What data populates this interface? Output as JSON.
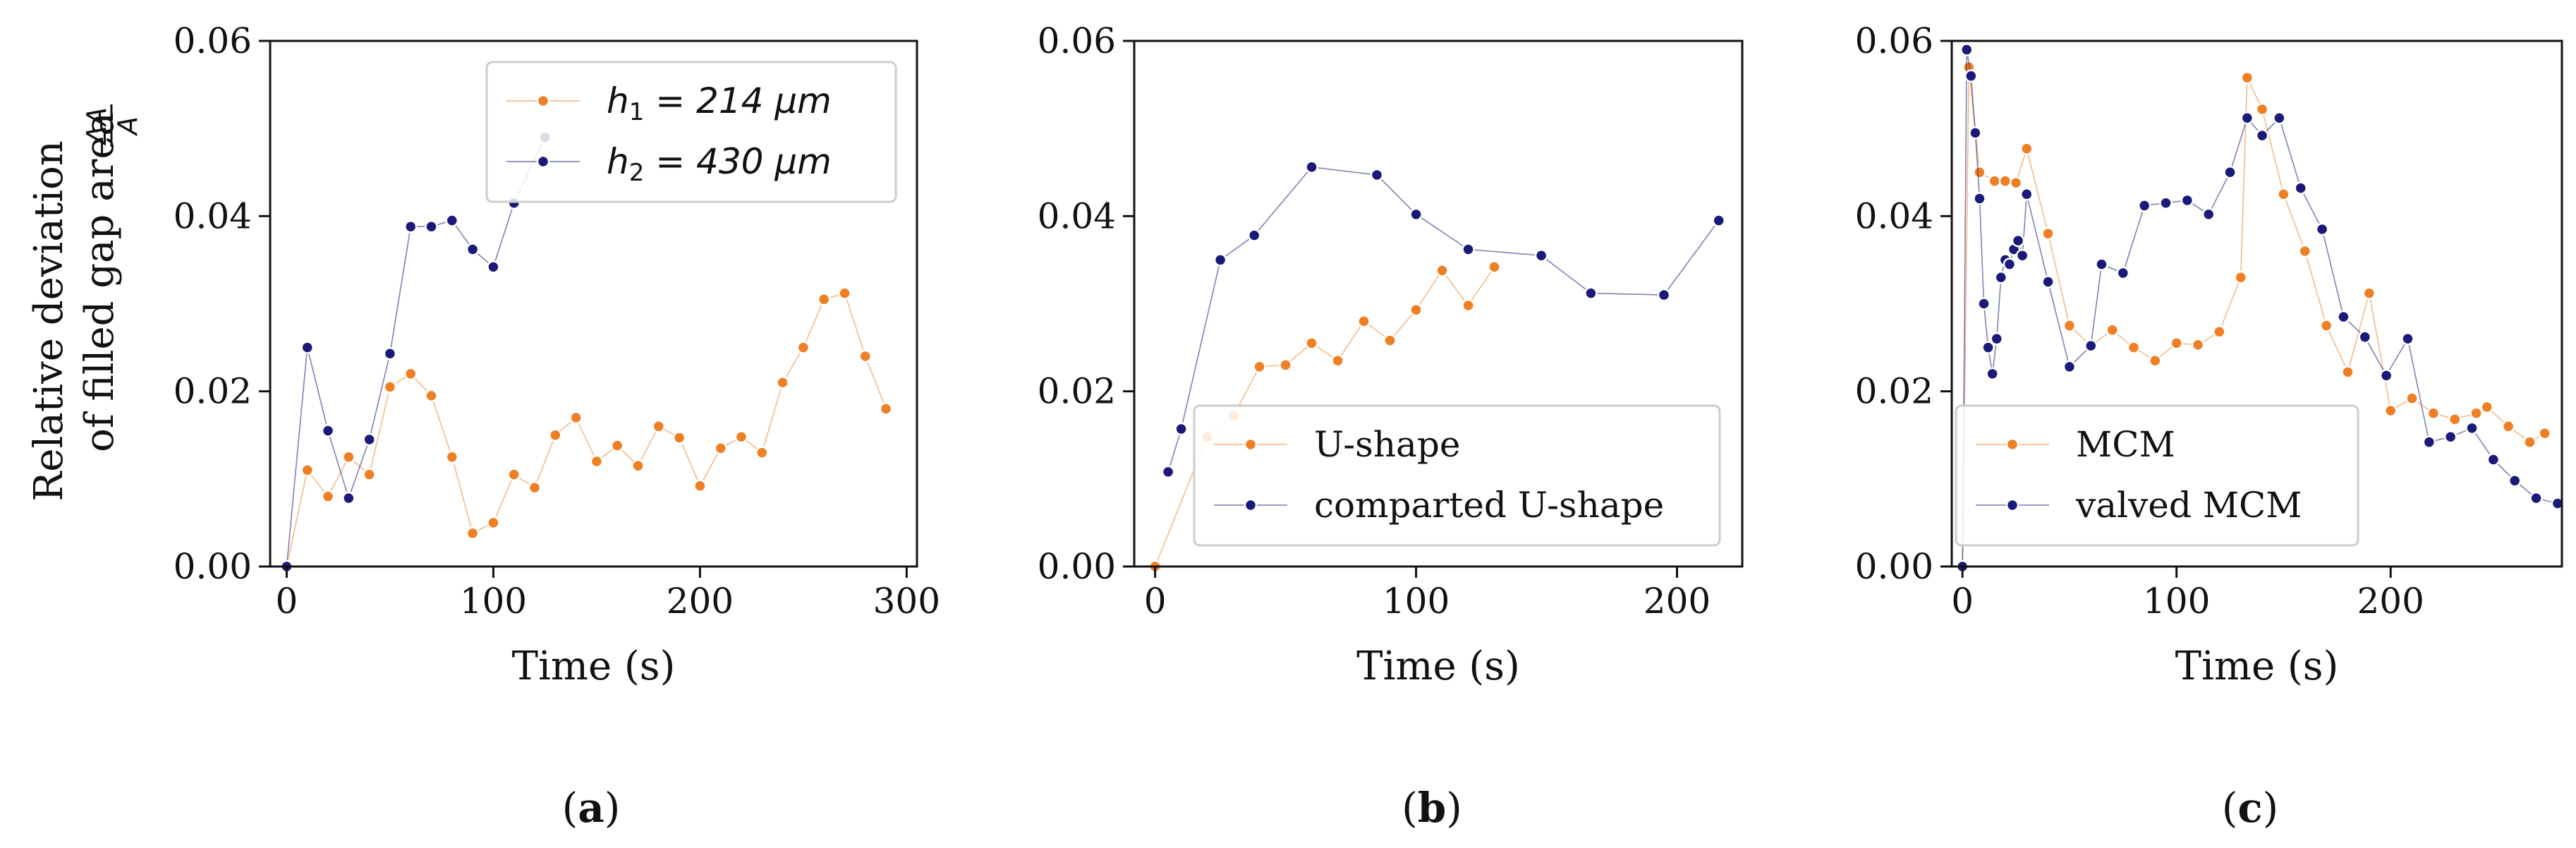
{
  "colors": {
    "orange": "#f07f23",
    "navy": "#1a1a7a",
    "axis": "#111111",
    "background": "#ffffff"
  },
  "figure": {
    "ylabel_line1": "Relative deviation",
    "ylabel_line2": "of filled gap area",
    "ylabel_fraction_num": "ΔA",
    "ylabel_fraction_den": "A"
  },
  "chart_data": [
    {
      "type": "line",
      "panel": "(a)",
      "panel_letter": "a",
      "xlabel": "Time (s)",
      "ylabel": "Relative deviation of filled gap area ΔA/A",
      "xlim": [
        -8,
        305
      ],
      "ylim": [
        0,
        0.06
      ],
      "xticks": [
        0,
        100,
        200,
        300
      ],
      "yticks": [
        0.0,
        0.02,
        0.04,
        0.06
      ],
      "ytick_labels": [
        "0.00",
        "0.02",
        "0.04",
        "0.06"
      ],
      "legend_position": "top-right",
      "series": [
        {
          "name": "h_1 = 214 μm",
          "legend_parts": [
            "h",
            "1",
            " = 214 μm"
          ],
          "color": "#f07f23",
          "x": [
            0,
            10,
            20,
            30,
            40,
            50,
            60,
            70,
            80,
            90,
            100,
            110,
            120,
            130,
            140,
            150,
            160,
            170,
            180,
            190,
            200,
            210,
            220,
            230,
            240,
            250,
            260,
            270,
            280,
            290
          ],
          "y": [
            0.0,
            0.011,
            0.008,
            0.0125,
            0.0105,
            0.0205,
            0.022,
            0.0195,
            0.0125,
            0.0038,
            0.005,
            0.0105,
            0.009,
            0.015,
            0.017,
            0.012,
            0.0138,
            0.0115,
            0.016,
            0.0147,
            0.0092,
            0.0135,
            0.0148,
            0.013,
            0.021,
            0.025,
            0.0305,
            0.0312,
            0.024,
            0.018
          ]
        },
        {
          "name": "h_2 = 430 μm",
          "legend_parts": [
            "h",
            "2",
            " = 430 μm"
          ],
          "color": "#1a1a7a",
          "x": [
            0,
            10,
            20,
            30,
            40,
            50,
            60,
            70,
            80,
            90,
            100,
            110,
            125
          ],
          "y": [
            0.0,
            0.025,
            0.0155,
            0.0078,
            0.0145,
            0.0243,
            0.0388,
            0.0388,
            0.0395,
            0.0362,
            0.0342,
            0.0415,
            0.049
          ]
        }
      ]
    },
    {
      "type": "line",
      "panel": "(b)",
      "panel_letter": "b",
      "xlabel": "Time (s)",
      "ylabel": "",
      "xlim": [
        -8,
        225
      ],
      "ylim": [
        0,
        0.06
      ],
      "xticks": [
        0,
        100,
        200
      ],
      "yticks": [
        0.0,
        0.02,
        0.04,
        0.06
      ],
      "ytick_labels": [
        "0.00",
        "0.02",
        "0.04",
        "0.06"
      ],
      "legend_position": "lower-right",
      "series": [
        {
          "name": "U-shape",
          "color": "#f07f23",
          "x": [
            0,
            20,
            30,
            40,
            50,
            60,
            70,
            80,
            90,
            100,
            110,
            120,
            130
          ],
          "y": [
            0.0,
            0.0148,
            0.0172,
            0.0228,
            0.023,
            0.0255,
            0.0235,
            0.028,
            0.0258,
            0.0293,
            0.0338,
            0.0298,
            0.0342
          ]
        },
        {
          "name": "comparted U-shape",
          "color": "#1a1a7a",
          "x": [
            5,
            10,
            25,
            38,
            60,
            85,
            100,
            120,
            148,
            167,
            195,
            216
          ],
          "y": [
            0.0108,
            0.0157,
            0.035,
            0.0378,
            0.0456,
            0.0447,
            0.0402,
            0.0362,
            0.0355,
            0.0312,
            0.031,
            0.0395
          ]
        }
      ]
    },
    {
      "type": "line",
      "panel": "(c)",
      "panel_letter": "c",
      "xlabel": "Time (s)",
      "ylabel": "",
      "xlim": [
        -5,
        280
      ],
      "ylim": [
        0,
        0.06
      ],
      "xticks": [
        0,
        100,
        200
      ],
      "yticks": [
        0.0,
        0.02,
        0.04,
        0.06
      ],
      "ytick_labels": [
        "0.00",
        "0.02",
        "0.04",
        "0.06"
      ],
      "legend_position": "lower-left",
      "series": [
        {
          "name": "MCM",
          "color": "#f07f23",
          "x": [
            0,
            3,
            8,
            15,
            20,
            25,
            30,
            40,
            50,
            60,
            70,
            80,
            90,
            100,
            110,
            120,
            130,
            133,
            140,
            150,
            160,
            170,
            180,
            190,
            200,
            210,
            220,
            230,
            240,
            245,
            255,
            265,
            272
          ],
          "y": [
            0.0,
            0.057,
            0.045,
            0.044,
            0.044,
            0.0438,
            0.0477,
            0.038,
            0.0275,
            0.0252,
            0.027,
            0.025,
            0.0235,
            0.0255,
            0.0253,
            0.0268,
            0.033,
            0.0558,
            0.0522,
            0.0425,
            0.036,
            0.0275,
            0.0222,
            0.0312,
            0.0178,
            0.0192,
            0.0175,
            0.0168,
            0.0175,
            0.0182,
            0.016,
            0.0142,
            0.0152
          ]
        },
        {
          "name": "valved MCM",
          "color": "#1a1a7a",
          "x": [
            0,
            2,
            4,
            6,
            8,
            10,
            12,
            14,
            16,
            18,
            20,
            22,
            24,
            26,
            28,
            30,
            40,
            50,
            60,
            65,
            75,
            85,
            95,
            105,
            115,
            125,
            133,
            140,
            148,
            158,
            168,
            178,
            188,
            198,
            208,
            218,
            228,
            238,
            248,
            258,
            268,
            278
          ],
          "y": [
            0.0,
            0.059,
            0.056,
            0.0495,
            0.042,
            0.03,
            0.025,
            0.022,
            0.026,
            0.033,
            0.035,
            0.0345,
            0.0362,
            0.0372,
            0.0355,
            0.0425,
            0.0325,
            0.0228,
            0.0252,
            0.0345,
            0.0335,
            0.0412,
            0.0415,
            0.0418,
            0.0402,
            0.045,
            0.0512,
            0.0492,
            0.0512,
            0.0432,
            0.0385,
            0.0285,
            0.0262,
            0.0218,
            0.026,
            0.0142,
            0.0148,
            0.0158,
            0.0122,
            0.0098,
            0.0078,
            0.0072
          ]
        }
      ]
    }
  ]
}
